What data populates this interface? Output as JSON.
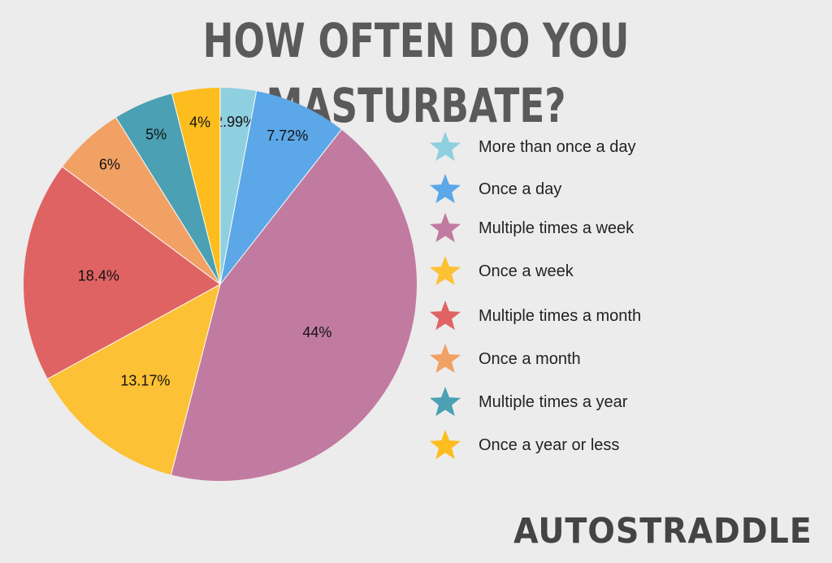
{
  "title": "HOW OFTEN DO YOU MASTURBATE?",
  "logo_text": "AUTOSTRADDLE",
  "chart_data": {
    "type": "pie",
    "title": "HOW OFTEN DO YOU MASTURBATE?",
    "legend_position": "right",
    "legend_marker": "star",
    "slices": [
      {
        "label": "More than once a day",
        "value": 2.99,
        "display": "2.99%",
        "color": "#8ecfe0"
      },
      {
        "label": "Once a day",
        "value": 7.72,
        "display": "7.72%",
        "color": "#5ba7e8"
      },
      {
        "label": "Multiple times a week",
        "value": 44,
        "display": "44%",
        "color": "#c17ba0"
      },
      {
        "label": "Once a week",
        "value": 13.17,
        "display": "13.17%",
        "color": "#fcc134"
      },
      {
        "label": "Multiple times a month",
        "value": 18.4,
        "display": "18.4%",
        "color": "#e06363"
      },
      {
        "label": "Once a month",
        "value": 6,
        "display": "6%",
        "color": "#f2a165"
      },
      {
        "label": "Multiple times a year",
        "value": 5,
        "display": "5%",
        "color": "#4ba0b3"
      },
      {
        "label": "Once a year or less",
        "value": 4,
        "display": "4%",
        "color": "#fdbd1f"
      }
    ]
  }
}
